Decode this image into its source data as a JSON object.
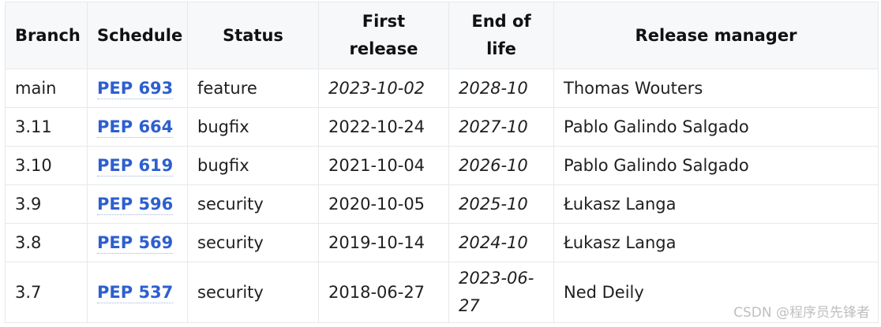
{
  "table": {
    "headers": [
      "Branch",
      "Schedule",
      "Status",
      "First release",
      "End of life",
      "Release manager"
    ],
    "rows": [
      {
        "branch": "main",
        "schedule": "PEP 693",
        "status": "feature",
        "first_release": "2023-10-02",
        "end_of_life": "2028-10",
        "manager": "Thomas Wouters"
      },
      {
        "branch": "3.11",
        "schedule": "PEP 664",
        "status": "bugfix",
        "first_release": "2022-10-24",
        "end_of_life": "2027-10",
        "manager": "Pablo Galindo Salgado"
      },
      {
        "branch": "3.10",
        "schedule": "PEP 619",
        "status": "bugfix",
        "first_release": "2021-10-04",
        "end_of_life": "2026-10",
        "manager": "Pablo Galindo Salgado"
      },
      {
        "branch": "3.9",
        "schedule": "PEP 596",
        "status": "security",
        "first_release": "2020-10-05",
        "end_of_life": "2025-10",
        "manager": "Łukasz Langa"
      },
      {
        "branch": "3.8",
        "schedule": "PEP 569",
        "status": "security",
        "first_release": "2019-10-14",
        "end_of_life": "2024-10",
        "manager": "Łukasz Langa"
      },
      {
        "branch": "3.7",
        "schedule": "PEP 537",
        "status": "security",
        "first_release": "2018-06-27",
        "end_of_life": "2023-06-27",
        "manager": "Ned Deily"
      }
    ]
  },
  "watermark": "CSDN @程序员先锋者",
  "colors": {
    "link": "#2d5fcf",
    "header_bg": "#f6f8f9",
    "border": "#e6e8ea"
  }
}
